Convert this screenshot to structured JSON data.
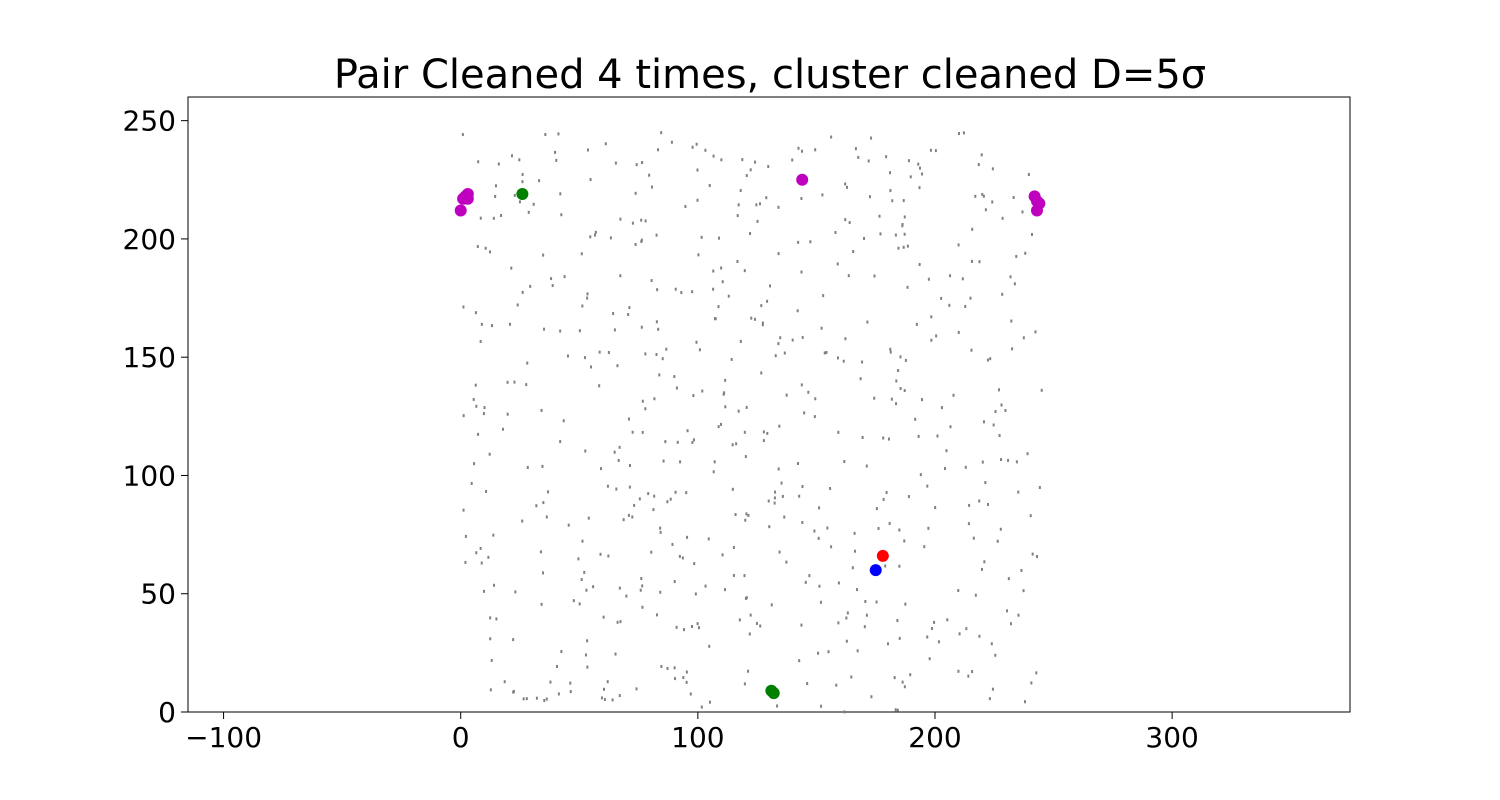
{
  "chart_data": {
    "type": "scatter",
    "title": "Pair Cleaned 4 times, cluster cleaned D=5σ",
    "xlabel": "",
    "ylabel": "",
    "xlim": [
      -115,
      375
    ],
    "ylim": [
      0,
      260
    ],
    "xticks": [
      -100,
      0,
      100,
      200,
      300
    ],
    "xtick_labels": [
      "−100",
      "0",
      "100",
      "200",
      "300"
    ],
    "yticks": [
      0,
      50,
      100,
      150,
      200,
      250
    ],
    "ytick_labels": [
      "0",
      "50",
      "100",
      "150",
      "200",
      "250"
    ],
    "grid": false,
    "legend": "none",
    "background_points": {
      "color": "#808080",
      "note_x_range": [
        0,
        245
      ],
      "note_y_range": [
        0,
        245
      ],
      "count": 620,
      "seed": 20231
    },
    "series": [
      {
        "color": "#bf00bf",
        "points": [
          [
            0,
            212
          ],
          [
            1,
            217
          ],
          [
            2,
            218
          ],
          [
            3,
            219
          ],
          [
            3,
            217
          ],
          [
            144,
            225
          ],
          [
            242,
            218
          ],
          [
            243,
            216
          ],
          [
            244,
            215
          ],
          [
            243,
            212
          ]
        ]
      },
      {
        "color": "#008000",
        "points": [
          [
            26,
            219
          ],
          [
            131,
            9
          ],
          [
            132,
            8
          ]
        ]
      },
      {
        "color": "#ff0000",
        "points": [
          [
            178,
            66
          ]
        ]
      },
      {
        "color": "#0000ff",
        "points": [
          [
            175,
            60
          ]
        ]
      }
    ]
  }
}
